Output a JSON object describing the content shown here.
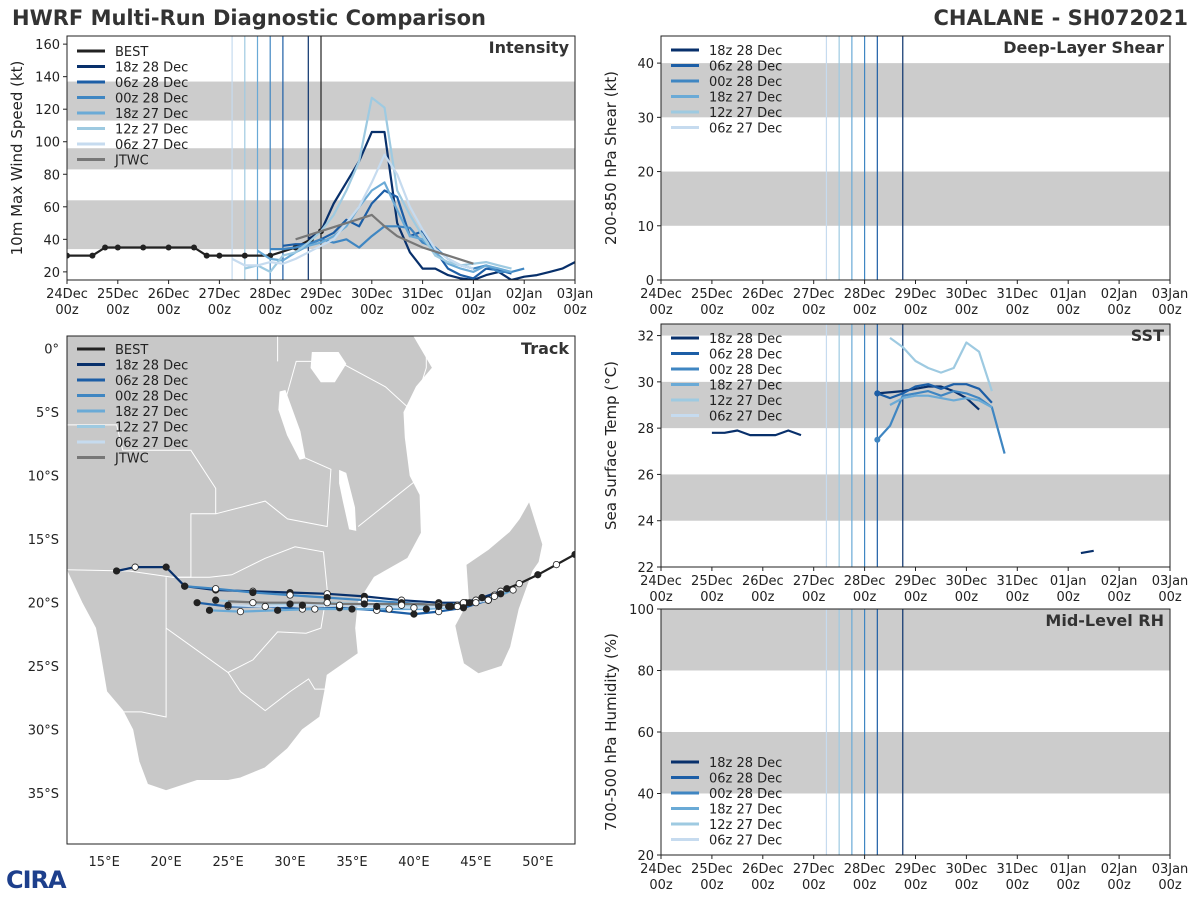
{
  "header": {
    "title_left": "HWRF Multi-Run Diagnostic Comparison",
    "title_right": "CHALANE - SH072021"
  },
  "logo": {
    "text": "CIRA"
  },
  "colors": {
    "BEST": "#222222",
    "JTWC": "#777777",
    "18z 28 Dec": "#08306b",
    "06z 28 Dec": "#1c5ea6",
    "00z 28 Dec": "#3f86c2",
    "18z 27 Dec": "#6aaad6",
    "12z 27 Dec": "#9ecae1",
    "06z 27 Dec": "#c6dbef",
    "band": "#cccccc",
    "land": "#c8c8c8",
    "border": "#ffffff"
  },
  "time_axis": {
    "ticks": [
      "24Dec",
      "25Dec",
      "26Dec",
      "27Dec",
      "28Dec",
      "29Dec",
      "30Dec",
      "31Dec",
      "01Jan",
      "02Jan",
      "03Jan"
    ],
    "sub": "00z",
    "range_days": [
      0,
      10
    ]
  },
  "init_times_days": [
    3.25,
    3.5,
    3.75,
    4.0,
    4.25,
    4.75
  ],
  "chart_data": [
    {
      "id": "intensity",
      "type": "line",
      "title": "Intensity",
      "ylabel": "10m Max Wind Speed (kt)",
      "xlim": [
        0,
        10
      ],
      "ylim": [
        15,
        165
      ],
      "yticks": [
        20,
        40,
        60,
        80,
        100,
        120,
        140,
        160
      ],
      "bands": [
        [
          34,
          64
        ],
        [
          83,
          96
        ],
        [
          113,
          137
        ]
      ],
      "vlines": [
        3.25,
        3.5,
        3.75,
        4.0,
        4.25,
        4.75,
        5.0
      ],
      "legend": [
        "BEST",
        "18z 28 Dec",
        "06z 28 Dec",
        "00z 28 Dec",
        "18z 27 Dec",
        "12z 27 Dec",
        "06z 27 Dec",
        "JTWC"
      ],
      "series": [
        {
          "name": "BEST",
          "x": [
            0,
            0.5,
            0.75,
            1.0,
            1.5,
            2.0,
            2.5,
            2.75,
            3.0,
            3.5,
            4.0,
            4.5,
            4.8,
            5.0
          ],
          "y": [
            30,
            30,
            35,
            35,
            35,
            35,
            35,
            30,
            30,
            30,
            30,
            35,
            40,
            45
          ],
          "markers": true
        },
        {
          "name": "18z 28 Dec",
          "x": [
            4.75,
            5.0,
            5.25,
            5.5,
            5.75,
            6.0,
            6.25,
            6.5,
            6.75,
            7.0,
            7.25,
            7.5,
            7.75,
            8.0,
            8.25,
            8.5,
            8.75,
            9.0,
            9.25,
            9.5,
            9.75,
            10.0
          ],
          "y": [
            40,
            45,
            62,
            75,
            88,
            106,
            106,
            50,
            32,
            22,
            22,
            18,
            16,
            15,
            18,
            20,
            15,
            17,
            18,
            20,
            22,
            26
          ],
          "markers": false
        },
        {
          "name": "06z 28 Dec",
          "x": [
            4.25,
            4.5,
            4.75,
            5.0,
            5.25,
            5.5,
            5.75,
            6.0,
            6.25,
            6.5,
            6.75,
            7.0,
            7.25,
            7.5,
            7.75,
            8.0,
            8.25,
            8.5,
            8.75
          ],
          "y": [
            36,
            37,
            37,
            40,
            44,
            52,
            48,
            62,
            70,
            66,
            42,
            45,
            33,
            22,
            18,
            16,
            22,
            21,
            19
          ],
          "markers": false
        },
        {
          "name": "00z 28 Dec",
          "x": [
            4.0,
            4.25,
            4.5,
            4.75,
            5.0,
            5.25,
            5.5,
            5.75,
            6.0,
            6.25,
            6.5,
            6.75,
            7.0,
            7.25,
            7.5,
            7.75,
            8.0,
            8.25,
            8.5,
            8.75,
            9.0
          ],
          "y": [
            34,
            34,
            35,
            37,
            40,
            38,
            40,
            35,
            42,
            48,
            48,
            47,
            38,
            35,
            28,
            24,
            22,
            24,
            20,
            20,
            22
          ],
          "markers": false
        },
        {
          "name": "18z 27 Dec",
          "x": [
            3.75,
            4.0,
            4.25,
            4.5,
            4.75,
            5.0,
            5.25,
            5.5,
            5.75,
            6.0,
            6.25,
            6.5,
            6.75,
            7.0,
            7.25,
            7.5,
            7.75,
            8.0,
            8.25,
            8.5,
            8.75
          ],
          "y": [
            33,
            28,
            27,
            32,
            36,
            38,
            42,
            48,
            60,
            70,
            75,
            58,
            42,
            40,
            32,
            25,
            22,
            20,
            24,
            22,
            20
          ],
          "markers": false
        },
        {
          "name": "12z 27 Dec",
          "x": [
            3.5,
            3.75,
            4.0,
            4.25,
            4.5,
            4.75,
            5.0,
            5.25,
            5.5,
            5.75,
            6.0,
            6.25,
            6.5,
            6.75,
            7.0,
            7.25,
            7.5,
            7.75,
            8.0,
            8.25,
            8.5,
            8.75
          ],
          "y": [
            22,
            24,
            20,
            30,
            32,
            38,
            45,
            55,
            70,
            88,
            127,
            121,
            70,
            55,
            42,
            30,
            26,
            24,
            25,
            26,
            24,
            22
          ],
          "markers": false
        },
        {
          "name": "06z 27 Dec",
          "x": [
            3.25,
            3.5,
            3.75,
            4.0,
            4.25,
            4.5,
            4.75,
            5.0,
            5.25,
            5.5,
            5.75,
            6.0,
            6.25,
            6.5,
            6.75,
            7.0,
            7.25,
            7.5,
            7.75,
            8.0
          ],
          "y": [
            28,
            24,
            24,
            26,
            25,
            28,
            32,
            36,
            40,
            50,
            60,
            75,
            92,
            80,
            60,
            46,
            34,
            28,
            24,
            22
          ],
          "markers": false
        },
        {
          "name": "JTWC",
          "x": [
            4.5,
            5.0,
            5.5,
            6.0,
            6.25,
            6.5,
            7.0,
            7.5,
            8.0
          ],
          "y": [
            40,
            45,
            50,
            55,
            48,
            42,
            35,
            30,
            25
          ],
          "markers": false
        }
      ]
    },
    {
      "id": "track",
      "type": "line",
      "title": "Track",
      "xlim": [
        12,
        53
      ],
      "ylim": [
        -39,
        1
      ],
      "xticks": [
        15,
        20,
        25,
        30,
        35,
        40,
        45,
        50
      ],
      "xticklabels": [
        "15°E",
        "20°E",
        "25°E",
        "30°E",
        "35°E",
        "40°E",
        "45°E",
        "50°E"
      ],
      "yticks": [
        0,
        -5,
        -10,
        -15,
        -20,
        -25,
        -30,
        -35
      ],
      "yticklabels": [
        "0°",
        "5°S",
        "10°S",
        "15°S",
        "20°S",
        "25°S",
        "30°S",
        "35°S"
      ],
      "legend": [
        "BEST",
        "18z 28 Dec",
        "06z 28 Dec",
        "00z 28 Dec",
        "18z 27 Dec",
        "12z 27 Dec",
        "06z 27 Dec",
        "JTWC"
      ],
      "series": [
        {
          "name": "BEST",
          "lon": [
            53,
            51.5,
            50,
            48.5,
            47.5,
            46.5,
            45.5,
            45,
            44.2,
            43.5,
            42.8
          ],
          "lat": [
            -16.2,
            -17,
            -17.8,
            -18.5,
            -18.9,
            -19.4,
            -19.6,
            -19.8,
            -20.0,
            -20.2,
            -20.3
          ],
          "markers": true
        },
        {
          "name": "18z 28 Dec",
          "lon": [
            16,
            17.5,
            20,
            21.5,
            24,
            27,
            30,
            33,
            36,
            39,
            42,
            44,
            45.5,
            47
          ],
          "lat": [
            -17.5,
            -17.2,
            -17.2,
            -18.7,
            -19.0,
            -19.1,
            -19.2,
            -19.3,
            -19.5,
            -19.8,
            -20.0,
            -20.0,
            -19.6,
            -19.1
          ],
          "markers": true
        },
        {
          "name": "06z 28 Dec",
          "lon": [
            22.5,
            25,
            28,
            31,
            34,
            37,
            40,
            42,
            44,
            46
          ],
          "lat": [
            -20.0,
            -20.3,
            -20.3,
            -20.5,
            -20.4,
            -20.6,
            -20.9,
            -20.7,
            -20.4,
            -19.8
          ],
          "markers": true
        },
        {
          "name": "00z 28 Dec",
          "lon": [
            21.5,
            24,
            27,
            30,
            33,
            36,
            39,
            42,
            44.5,
            46.5
          ],
          "lat": [
            -18.7,
            -18.9,
            -19.2,
            -19.4,
            -19.6,
            -19.8,
            -20.0,
            -20.2,
            -20.0,
            -19.5
          ],
          "markers": true
        },
        {
          "name": "18z 27 Dec",
          "lon": [
            23.5,
            26,
            29,
            32,
            35,
            38,
            41,
            43.5,
            46,
            48
          ],
          "lat": [
            -20.6,
            -20.7,
            -20.6,
            -20.5,
            -20.5,
            -20.5,
            -20.5,
            -20.3,
            -19.8,
            -19.0
          ],
          "markers": true
        },
        {
          "name": "12z 27 Dec",
          "lon": [
            24,
            27,
            30,
            33,
            36,
            39,
            42,
            45,
            47
          ],
          "lat": [
            -19.8,
            -20.0,
            -20.1,
            -20.0,
            -20.1,
            -20.2,
            -20.3,
            -20.0,
            -19.3
          ],
          "markers": true
        },
        {
          "name": "06z 27 Dec",
          "lon": [
            25,
            28,
            31,
            34,
            37,
            40,
            43,
            46
          ],
          "lat": [
            -20.2,
            -20.3,
            -20.2,
            -20.2,
            -20.3,
            -20.4,
            -20.3,
            -19.8
          ],
          "markers": true
        },
        {
          "name": "JTWC",
          "lon": [
            25,
            28,
            31,
            34,
            37,
            40,
            43,
            45
          ],
          "lat": [
            -19.9,
            -20.0,
            -20.0,
            -20.1,
            -20.1,
            -20.1,
            -20.2,
            -20.1
          ],
          "markers": false
        }
      ]
    },
    {
      "id": "shear",
      "type": "line",
      "title": "Deep-Layer Shear",
      "ylabel": "200-850 hPa Shear (kt)",
      "xlim": [
        0,
        10
      ],
      "ylim": [
        0,
        45
      ],
      "yticks": [
        0,
        10,
        20,
        30,
        40
      ],
      "bands": [
        [
          10,
          20
        ],
        [
          30,
          40
        ]
      ],
      "vlines": [
        3.25,
        3.5,
        3.75,
        4.0,
        4.25,
        4.75
      ],
      "legend": [
        "18z 28 Dec",
        "06z 28 Dec",
        "00z 28 Dec",
        "18z 27 Dec",
        "12z 27 Dec",
        "06z 27 Dec"
      ],
      "series": []
    },
    {
      "id": "sst",
      "type": "line",
      "title": "SST",
      "ylabel": "Sea Surface Temp (°C)",
      "xlim": [
        0,
        10
      ],
      "ylim": [
        22,
        32.5
      ],
      "yticks": [
        22,
        24,
        26,
        28,
        30,
        32
      ],
      "bands": [
        [
          24,
          26
        ],
        [
          28,
          30
        ],
        [
          32,
          32.5
        ]
      ],
      "vlines": [
        3.25,
        3.5,
        3.75,
        4.0,
        4.25,
        4.75
      ],
      "legend": [
        "18z 28 Dec",
        "06z 28 Dec",
        "00z 28 Dec",
        "18z 27 Dec",
        "12z 27 Dec",
        "06z 27 Dec"
      ],
      "series": [
        {
          "name": "18z 28 Dec",
          "x": [
            1.0,
            1.25,
            1.5,
            1.75,
            2.0,
            2.25,
            2.5,
            2.75
          ],
          "y": [
            27.8,
            27.8,
            27.9,
            27.7,
            27.7,
            27.7,
            27.9,
            27.7
          ]
        },
        {
          "name": "18z 28 Dec",
          "x": [
            4.25,
            4.75,
            5.0,
            5.25,
            5.5,
            5.75,
            6.0,
            6.25
          ],
          "y": [
            29.5,
            29.6,
            29.7,
            29.8,
            29.8,
            29.6,
            29.3,
            28.8
          ]
        },
        {
          "name": "18z 28 Dec",
          "x": [
            8.25,
            8.5
          ],
          "y": [
            22.6,
            22.7
          ]
        },
        {
          "name": "06z 28 Dec",
          "x": [
            4.25,
            4.5,
            4.75,
            5.0,
            5.25,
            5.5,
            5.75,
            6.0,
            6.25,
            6.5
          ],
          "y": [
            29.5,
            29.3,
            29.5,
            29.8,
            29.9,
            29.7,
            29.9,
            29.9,
            29.7,
            29.1
          ]
        },
        {
          "name": "00z 28 Dec",
          "x": [
            4.25,
            4.5,
            4.75,
            5.0,
            5.25,
            5.5,
            5.75,
            6.0,
            6.25,
            6.5,
            6.75
          ],
          "y": [
            27.5,
            28.1,
            29.4,
            29.5,
            29.6,
            29.4,
            29.6,
            29.5,
            29.3,
            28.9,
            26.9
          ]
        },
        {
          "name": "18z 27 Dec",
          "x": [
            4.5,
            4.75,
            5.0,
            5.25,
            5.5,
            5.75,
            6.0,
            6.25,
            6.5
          ],
          "y": [
            29.0,
            29.3,
            29.4,
            29.4,
            29.3,
            29.2,
            29.3,
            29.2,
            28.9
          ]
        },
        {
          "name": "12z 27 Dec",
          "x": [
            4.5,
            4.75,
            5.0,
            5.25,
            5.5,
            5.75,
            6.0,
            6.25,
            6.5
          ],
          "y": [
            31.9,
            31.5,
            30.9,
            30.6,
            30.4,
            30.6,
            31.7,
            31.3,
            29.6
          ]
        }
      ]
    },
    {
      "id": "rh",
      "type": "line",
      "title": "Mid-Level RH",
      "ylabel": "700-500 hPa Humidity (%)",
      "xlim": [
        0,
        10
      ],
      "ylim": [
        20,
        100
      ],
      "yticks": [
        20,
        40,
        60,
        80,
        100
      ],
      "bands": [
        [
          40,
          60
        ],
        [
          80,
          100
        ]
      ],
      "vlines": [
        3.25,
        3.5,
        3.75,
        4.0,
        4.25,
        4.75
      ],
      "legend": [
        "18z 28 Dec",
        "06z 28 Dec",
        "00z 28 Dec",
        "18z 27 Dec",
        "12z 27 Dec",
        "06z 27 Dec"
      ],
      "series": []
    }
  ]
}
